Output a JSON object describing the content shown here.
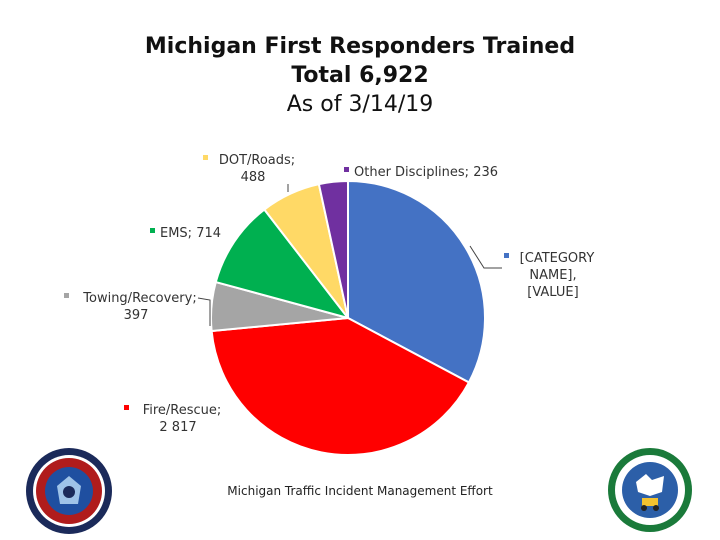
{
  "chart_data": {
    "type": "pie",
    "title": "Michigan First Responders Trained",
    "subtitle_total": "Total 6,922",
    "subtitle_date": "As of 3/14/19",
    "slices": [
      {
        "label": "[CATEGORY NAME]",
        "label_lines": [
          "[CATEGORY",
          "NAME],",
          "[VALUE]"
        ],
        "value": 2270,
        "color": "#4472C4"
      },
      {
        "label": "Fire/Rescue",
        "label_lines": [
          "Fire/Rescue;",
          "2 817"
        ],
        "value": 2817,
        "color": "#FF0000"
      },
      {
        "label": "Towing/Recovery",
        "label_lines": [
          "Towing/Recovery;",
          "397"
        ],
        "value": 397,
        "color": "#A5A5A5"
      },
      {
        "label": "EMS",
        "label_lines": [
          "EMS;  714"
        ],
        "value": 714,
        "color": "#00B050"
      },
      {
        "label": "DOT/Roads",
        "label_lines": [
          "DOT/Roads;",
          "488"
        ],
        "value": 488,
        "color": "#FFD966"
      },
      {
        "label": "Other Disciplines",
        "label_lines": [
          "Other Disciplines;  236"
        ],
        "value": 236,
        "color": "#7030A0"
      }
    ]
  },
  "footer": {
    "text": "Michigan Traffic Incident Management Effort"
  },
  "logos": {
    "left": "circular-seal-logo",
    "right": "circular-seal-logo"
  }
}
